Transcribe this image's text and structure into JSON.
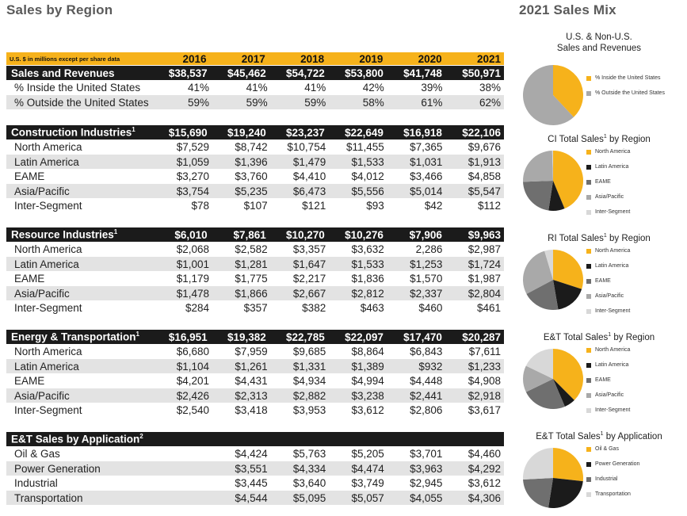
{
  "left_title": "Sales by Region",
  "right_title": "2021 Sales Mix",
  "header": {
    "note": "U.S. $ in millions except per share data",
    "years": [
      "2016",
      "2017",
      "2018",
      "2019",
      "2020",
      "2021"
    ]
  },
  "sections": [
    {
      "rows": [
        {
          "label": "Sales and Revenues",
          "style": "black",
          "values": [
            "$38,537",
            "$45,462",
            "$54,722",
            "$53,800",
            "$41,748",
            "$50,971"
          ]
        },
        {
          "label": "% Inside the United States",
          "style": "white",
          "values": [
            "41%",
            "41%",
            "41%",
            "42%",
            "39%",
            "38%"
          ]
        },
        {
          "label": "% Outside the United States",
          "style": "gray",
          "values": [
            "59%",
            "59%",
            "59%",
            "58%",
            "61%",
            "62%"
          ]
        }
      ]
    },
    {
      "rows": [
        {
          "label": "Construction Industries",
          "sup": "1",
          "style": "black",
          "values": [
            "$15,690",
            "$19,240",
            "$23,237",
            "$22,649",
            "$16,918",
            "$22,106"
          ]
        },
        {
          "label": "North America",
          "style": "white",
          "values": [
            "$7,529",
            "$8,742",
            "$10,754",
            "$11,455",
            "$7,365",
            "$9,676"
          ]
        },
        {
          "label": "Latin America",
          "style": "gray",
          "values": [
            "$1,059",
            "$1,396",
            "$1,479",
            "$1,533",
            "$1,031",
            "$1,913"
          ]
        },
        {
          "label": "EAME",
          "style": "white",
          "values": [
            "$3,270",
            "$3,760",
            "$4,410",
            "$4,012",
            "$3,466",
            "$4,858"
          ]
        },
        {
          "label": "Asia/Pacific",
          "style": "gray",
          "values": [
            "$3,754",
            "$5,235",
            "$6,473",
            "$5,556",
            "$5,014",
            "$5,547"
          ]
        },
        {
          "label": "Inter-Segment",
          "style": "white",
          "values": [
            "$78",
            "$107",
            "$121",
            "$93",
            "$42",
            "$112"
          ]
        }
      ]
    },
    {
      "rows": [
        {
          "label": "Resource Industries",
          "sup": "1",
          "style": "black",
          "values": [
            "$6,010",
            "$7,861",
            "$10,270",
            "$10,276",
            "$7,906",
            "$9,963"
          ]
        },
        {
          "label": "North America",
          "style": "white",
          "values": [
            "$2,068",
            "$2,582",
            "$3,357",
            "$3,632",
            "2,286",
            "$2,987"
          ]
        },
        {
          "label": "Latin America",
          "style": "gray",
          "values": [
            "$1,001",
            "$1,281",
            "$1,647",
            "$1,533",
            "$1,253",
            "$1,724"
          ]
        },
        {
          "label": "EAME",
          "style": "white",
          "values": [
            "$1,179",
            "$1,775",
            "$2,217",
            "$1,836",
            "$1,570",
            "$1,987"
          ]
        },
        {
          "label": "Asia/Pacific",
          "style": "gray",
          "values": [
            "$1,478",
            "$1,866",
            "$2,667",
            "$2,812",
            "$2,337",
            "$2,804"
          ]
        },
        {
          "label": "Inter-Segment",
          "style": "white",
          "values": [
            "$284",
            "$357",
            "$382",
            "$463",
            "$460",
            "$461"
          ]
        }
      ]
    },
    {
      "rows": [
        {
          "label": "Energy & Transportation",
          "sup": "1",
          "style": "black",
          "values": [
            "$16,951",
            "$19,382",
            "$22,785",
            "$22,097",
            "$17,470",
            "$20,287"
          ]
        },
        {
          "label": "North America",
          "style": "white",
          "values": [
            "$6,680",
            "$7,959",
            "$9,685",
            "$8,864",
            "$6,843",
            "$7,611"
          ]
        },
        {
          "label": "Latin America",
          "style": "gray",
          "values": [
            "$1,104",
            "$1,261",
            "$1,331",
            "$1,389",
            "$932",
            "$1,233"
          ]
        },
        {
          "label": "EAME",
          "style": "white",
          "values": [
            "$4,201",
            "$4,431",
            "$4,934",
            "$4,994",
            "$4,448",
            "$4,908"
          ]
        },
        {
          "label": "Asia/Pacific",
          "style": "gray",
          "values": [
            "$2,426",
            "$2,313",
            "$2,882",
            "$3,238",
            "$2,441",
            "$2,918"
          ]
        },
        {
          "label": "Inter-Segment",
          "style": "white",
          "values": [
            "$2,540",
            "$3,418",
            "$3,953",
            "$3,612",
            "$2,806",
            "$3,617"
          ]
        }
      ]
    },
    {
      "rows": [
        {
          "label": "E&T Sales by Application",
          "sup": "2",
          "style": "black",
          "values": [
            "",
            "",
            "",
            "",
            "",
            ""
          ]
        },
        {
          "label": "Oil & Gas",
          "style": "white",
          "values": [
            "",
            "$4,424",
            "$5,763",
            "$5,205",
            "$3,701",
            "$4,460"
          ]
        },
        {
          "label": "Power Generation",
          "style": "gray",
          "values": [
            "",
            "$3,551",
            "$4,334",
            "$4,474",
            "$3,963",
            "$4,292"
          ]
        },
        {
          "label": "Industrial",
          "style": "white",
          "values": [
            "",
            "$3,445",
            "$3,640",
            "$3,749",
            "$2,945",
            "$3,612"
          ]
        },
        {
          "label": "Transportation",
          "style": "gray",
          "values": [
            "",
            "$4,544",
            "$5,095",
            "$5,057",
            "$4,055",
            "$4,306"
          ]
        }
      ]
    }
  ],
  "colors": {
    "yellow": "#f6b21b",
    "black": "#1b1b1b",
    "dark_gray": "#6f6f6f",
    "mid_gray": "#a9a9a9",
    "light_gray": "#d8d8d8"
  },
  "pies": [
    {
      "title_lines": [
        "U.S. & Non-U.S.",
        "Sales and Revenues"
      ],
      "slices": [
        {
          "label": "% Inside the United States",
          "value": 38,
          "color": "#f6b21b"
        },
        {
          "label": "% Outside the United States",
          "value": 62,
          "color": "#a9a9a9"
        }
      ]
    },
    {
      "title_pre": "CI Total Sales",
      "sup": "1",
      "title_post": " by Region",
      "slices": [
        {
          "label": "North America",
          "value": 9676,
          "color": "#f6b21b"
        },
        {
          "label": "Latin America",
          "value": 1913,
          "color": "#1b1b1b"
        },
        {
          "label": "EAME",
          "value": 4858,
          "color": "#6f6f6f"
        },
        {
          "label": "Asia/Pacific",
          "value": 5547,
          "color": "#a9a9a9"
        },
        {
          "label": "Inter-Segment",
          "value": 112,
          "color": "#d8d8d8"
        }
      ]
    },
    {
      "title_pre": "RI Total Sales",
      "sup": "1",
      "title_post": " by Region",
      "slices": [
        {
          "label": "North America",
          "value": 2987,
          "color": "#f6b21b"
        },
        {
          "label": "Latin America",
          "value": 1724,
          "color": "#1b1b1b"
        },
        {
          "label": "EAME",
          "value": 1987,
          "color": "#6f6f6f"
        },
        {
          "label": "Asia/Pacific",
          "value": 2804,
          "color": "#a9a9a9"
        },
        {
          "label": "Inter-Segment",
          "value": 461,
          "color": "#d8d8d8"
        }
      ]
    },
    {
      "title_pre": "E&T Total Sales",
      "sup": "1",
      "title_post": " by Region",
      "slices": [
        {
          "label": "North America",
          "value": 7611,
          "color": "#f6b21b"
        },
        {
          "label": "Latin America",
          "value": 1233,
          "color": "#1b1b1b"
        },
        {
          "label": "EAME",
          "value": 4908,
          "color": "#6f6f6f"
        },
        {
          "label": "Asia/Pacific",
          "value": 2918,
          "color": "#a9a9a9"
        },
        {
          "label": "Inter-Segment",
          "value": 3617,
          "color": "#d8d8d8"
        }
      ]
    },
    {
      "title_pre": "E&T Total Sales",
      "sup": "1",
      "title_post": " by Application",
      "slices": [
        {
          "label": "Oil & Gas",
          "value": 4460,
          "color": "#f6b21b"
        },
        {
          "label": "Power Generation",
          "value": 4292,
          "color": "#1b1b1b"
        },
        {
          "label": "Industrial",
          "value": 3612,
          "color": "#6f6f6f"
        },
        {
          "label": "Transportation",
          "value": 4306,
          "color": "#d8d8d8"
        }
      ]
    }
  ]
}
